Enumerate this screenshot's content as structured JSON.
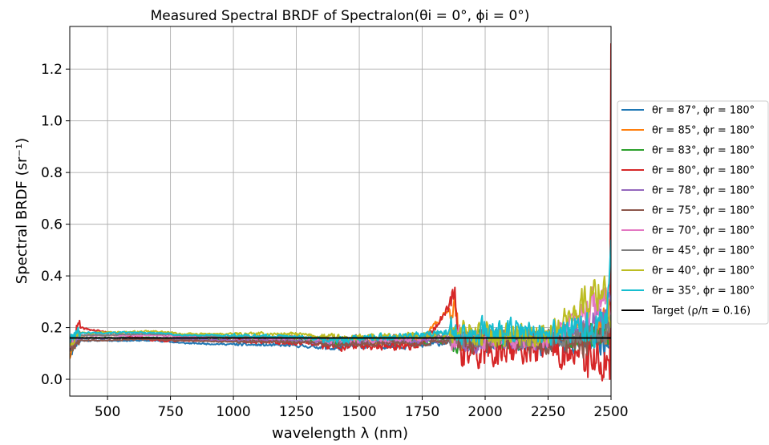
{
  "chart_data": {
    "type": "line",
    "title": "Measured Spectral BRDF of Spectralon(θi = 0°, ϕi = 0°)",
    "xlabel": "wavelength λ (nm)",
    "ylabel": "Spectral BRDF (sr⁻¹)",
    "xlim": [
      350,
      2500
    ],
    "ylim": [
      -0.065,
      1.365
    ],
    "xticks": [
      500,
      750,
      1000,
      1250,
      1500,
      1750,
      2000,
      2250,
      2500
    ],
    "yticks": [
      0.0,
      0.2,
      0.4,
      0.6,
      0.8,
      1.0,
      1.2
    ],
    "grid": true,
    "legend_position": "center-right outside",
    "series": [
      {
        "name": "θr = 87°, ϕr = 180°",
        "color": "#1f77b4",
        "base": 0.14,
        "noise_scale": 1.0,
        "seed": 11,
        "anchors": [
          [
            350,
            0.1
          ],
          [
            380,
            0.15
          ],
          [
            700,
            0.15
          ],
          [
            800,
            0.14
          ],
          [
            1000,
            0.135
          ],
          [
            1250,
            0.13
          ],
          [
            1400,
            0.12
          ],
          [
            1500,
            0.13
          ],
          [
            1750,
            0.13
          ],
          [
            1880,
            0.15
          ],
          [
            2000,
            0.14
          ],
          [
            2250,
            0.13
          ],
          [
            2480,
            0.15
          ],
          [
            2495,
            0.12
          ],
          [
            2500,
            0.4
          ]
        ]
      },
      {
        "name": "θr = 85°, ϕr = 180°",
        "color": "#ff7f0e",
        "base": 0.16,
        "noise_scale": 1.1,
        "seed": 23,
        "anchors": [
          [
            350,
            0.09
          ],
          [
            380,
            0.17
          ],
          [
            700,
            0.175
          ],
          [
            800,
            0.165
          ],
          [
            1000,
            0.16
          ],
          [
            1250,
            0.16
          ],
          [
            1400,
            0.15
          ],
          [
            1500,
            0.15
          ],
          [
            1750,
            0.15
          ],
          [
            1880,
            0.3
          ],
          [
            1900,
            0.15
          ],
          [
            2250,
            0.15
          ],
          [
            2480,
            0.2
          ],
          [
            2500,
            0.3
          ]
        ]
      },
      {
        "name": "θr = 83°, ϕr = 180°",
        "color": "#2ca02c",
        "base": 0.15,
        "noise_scale": 1.0,
        "seed": 37,
        "anchors": [
          [
            350,
            0.12
          ],
          [
            380,
            0.16
          ],
          [
            700,
            0.16
          ],
          [
            800,
            0.155
          ],
          [
            1000,
            0.15
          ],
          [
            1250,
            0.15
          ],
          [
            1400,
            0.14
          ],
          [
            1500,
            0.14
          ],
          [
            1750,
            0.15
          ],
          [
            1880,
            0.15
          ],
          [
            2250,
            0.15
          ],
          [
            2480,
            0.15
          ],
          [
            2500,
            0.25
          ]
        ]
      },
      {
        "name": "θr = 80°, ϕr = 180°",
        "color": "#d62728",
        "base": 0.14,
        "noise_scale": 1.5,
        "seed": 41,
        "anchors": [
          [
            350,
            0.12
          ],
          [
            380,
            0.2
          ],
          [
            700,
            0.15
          ],
          [
            800,
            0.15
          ],
          [
            1000,
            0.15
          ],
          [
            1250,
            0.14
          ],
          [
            1400,
            0.13
          ],
          [
            1500,
            0.13
          ],
          [
            1750,
            0.13
          ],
          [
            1880,
            0.31
          ],
          [
            1900,
            0.1
          ],
          [
            2250,
            0.12
          ],
          [
            2480,
            0.05
          ],
          [
            2495,
            0.0
          ],
          [
            2500,
            1.3
          ]
        ]
      },
      {
        "name": "θr = 78°, ϕr = 180°",
        "color": "#9467bd",
        "base": 0.15,
        "noise_scale": 1.0,
        "seed": 53,
        "anchors": [
          [
            350,
            0.13
          ],
          [
            380,
            0.16
          ],
          [
            700,
            0.16
          ],
          [
            800,
            0.155
          ],
          [
            1000,
            0.15
          ],
          [
            1250,
            0.15
          ],
          [
            1400,
            0.14
          ],
          [
            1500,
            0.14
          ],
          [
            1750,
            0.15
          ],
          [
            1880,
            0.15
          ],
          [
            2250,
            0.15
          ],
          [
            2480,
            0.25
          ],
          [
            2500,
            0.3
          ]
        ]
      },
      {
        "name": "θr = 75°, ϕr = 180°",
        "color": "#8c564b",
        "base": 0.145,
        "noise_scale": 1.0,
        "seed": 67,
        "anchors": [
          [
            350,
            0.12
          ],
          [
            380,
            0.15
          ],
          [
            700,
            0.155
          ],
          [
            800,
            0.15
          ],
          [
            1000,
            0.145
          ],
          [
            1250,
            0.145
          ],
          [
            1400,
            0.135
          ],
          [
            1500,
            0.14
          ],
          [
            1750,
            0.14
          ],
          [
            1880,
            0.15
          ],
          [
            2250,
            0.14
          ],
          [
            2480,
            0.15
          ],
          [
            2500,
            0.2
          ]
        ]
      },
      {
        "name": "θr = 70°, ϕr = 180°",
        "color": "#e377c2",
        "base": 0.16,
        "noise_scale": 1.0,
        "seed": 71,
        "anchors": [
          [
            350,
            0.13
          ],
          [
            380,
            0.17
          ],
          [
            700,
            0.17
          ],
          [
            800,
            0.165
          ],
          [
            1000,
            0.16
          ],
          [
            1250,
            0.16
          ],
          [
            1400,
            0.15
          ],
          [
            1500,
            0.15
          ],
          [
            1750,
            0.16
          ],
          [
            1880,
            0.16
          ],
          [
            2250,
            0.15
          ],
          [
            2480,
            0.32
          ],
          [
            2500,
            0.2
          ]
        ]
      },
      {
        "name": "θr = 45°, ϕr = 180°",
        "color": "#7f7f7f",
        "base": 0.165,
        "noise_scale": 0.9,
        "seed": 83,
        "anchors": [
          [
            350,
            0.14
          ],
          [
            380,
            0.17
          ],
          [
            700,
            0.175
          ],
          [
            800,
            0.17
          ],
          [
            1000,
            0.165
          ],
          [
            1250,
            0.165
          ],
          [
            1400,
            0.155
          ],
          [
            1500,
            0.16
          ],
          [
            1750,
            0.165
          ],
          [
            1880,
            0.165
          ],
          [
            2250,
            0.16
          ],
          [
            2480,
            0.18
          ],
          [
            2500,
            0.25
          ]
        ]
      },
      {
        "name": "θr = 40°, ϕr = 180°",
        "color": "#bcbd22",
        "base": 0.175,
        "noise_scale": 1.2,
        "seed": 97,
        "anchors": [
          [
            350,
            0.15
          ],
          [
            380,
            0.18
          ],
          [
            700,
            0.185
          ],
          [
            800,
            0.175
          ],
          [
            1000,
            0.175
          ],
          [
            1250,
            0.175
          ],
          [
            1400,
            0.16
          ],
          [
            1500,
            0.16
          ],
          [
            1750,
            0.17
          ],
          [
            1880,
            0.18
          ],
          [
            2250,
            0.17
          ],
          [
            2480,
            0.37
          ],
          [
            2500,
            0.2
          ]
        ]
      },
      {
        "name": "θr = 35°, ϕr = 180°",
        "color": "#17becf",
        "base": 0.17,
        "noise_scale": 1.2,
        "seed": 101,
        "anchors": [
          [
            350,
            0.15
          ],
          [
            380,
            0.18
          ],
          [
            700,
            0.18
          ],
          [
            800,
            0.17
          ],
          [
            1000,
            0.17
          ],
          [
            1250,
            0.165
          ],
          [
            1400,
            0.15
          ],
          [
            1500,
            0.16
          ],
          [
            1750,
            0.17
          ],
          [
            1880,
            0.19
          ],
          [
            2250,
            0.18
          ],
          [
            2480,
            0.2
          ],
          [
            2500,
            0.54
          ]
        ]
      },
      {
        "name": "Target (ρ/π = 0.16)",
        "color": "#000000",
        "constant": 0.16
      }
    ]
  }
}
